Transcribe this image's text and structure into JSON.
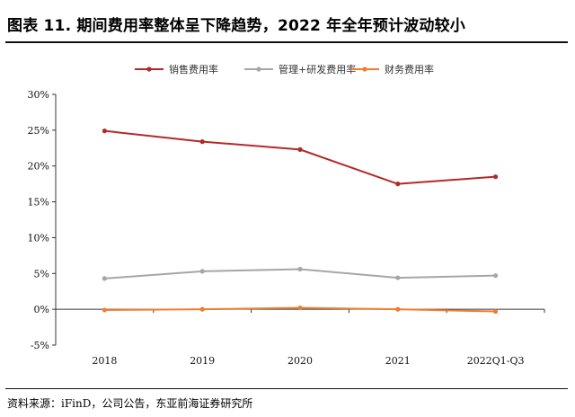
{
  "figure": {
    "title": "图表 11. 期间费用率整体呈下降趋势，2022 年全年预计波动较小",
    "source": "资料来源：iFinD，公司公告，东亚前海证券研究所"
  },
  "chart_data": {
    "type": "line",
    "categories": [
      "2018",
      "2019",
      "2020",
      "2021",
      "2022Q1-Q3"
    ],
    "series": [
      {
        "name": "销售费用率",
        "color": "#B22A2A",
        "values": [
          24.9,
          23.4,
          22.3,
          17.5,
          18.5
        ]
      },
      {
        "name": "管理+研发费用率",
        "color": "#A6A6A6",
        "values": [
          4.3,
          5.3,
          5.6,
          4.4,
          4.7
        ]
      },
      {
        "name": "财务费用率",
        "color": "#ED7D31",
        "values": [
          -0.1,
          0.0,
          0.2,
          0.0,
          -0.3
        ]
      }
    ],
    "y_ticks": [
      "30%",
      "25%",
      "20%",
      "15%",
      "10%",
      "5%",
      "0%",
      "-5%"
    ],
    "y_tick_values": [
      30,
      25,
      20,
      15,
      10,
      5,
      0,
      -5
    ],
    "ylim": [
      -5,
      30
    ],
    "grid": false,
    "legend_position": "top-center",
    "title": "",
    "xlabel": "",
    "ylabel": ""
  }
}
